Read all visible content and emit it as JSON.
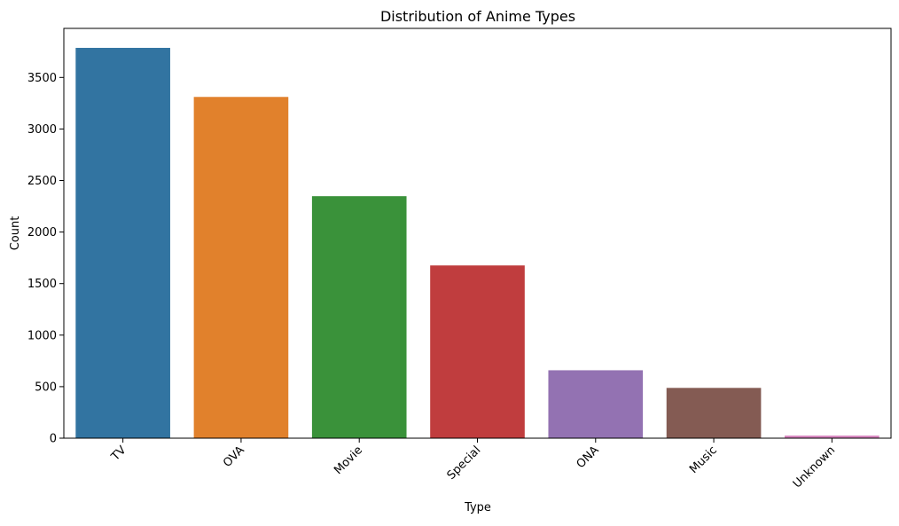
{
  "chart_data": {
    "type": "bar",
    "title": "Distribution of Anime Types",
    "xlabel": "Type",
    "ylabel": "Count",
    "categories": [
      "TV",
      "OVA",
      "Movie",
      "Special",
      "ONA",
      "Music",
      "Unknown"
    ],
    "values": [
      3787,
      3311,
      2348,
      1676,
      659,
      488,
      25
    ],
    "ylim": [
      0,
      3976
    ],
    "yticks": [
      0,
      500,
      1000,
      1500,
      2000,
      2500,
      3000,
      3500
    ],
    "colors": [
      "#3274a1",
      "#e1812c",
      "#3a923a",
      "#c03d3e",
      "#9372b2",
      "#845b53",
      "#d684bd"
    ],
    "grid": false,
    "legend": "none"
  }
}
